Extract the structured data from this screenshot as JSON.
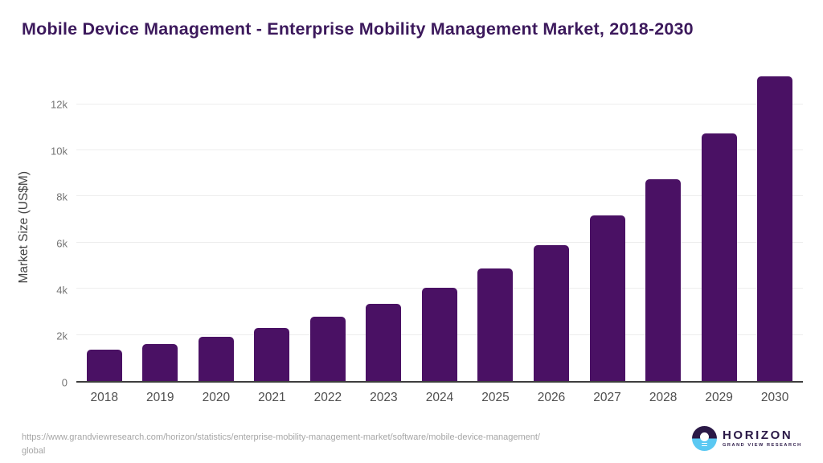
{
  "header": {
    "title": "Mobile Device Management - Enterprise Mobility Management Market, 2018-2030"
  },
  "chart_data": {
    "type": "bar",
    "title": "Mobile Device Management - Enterprise Mobility Management Market, 2018-2030",
    "xlabel": "",
    "ylabel": "Market Size (US$M)",
    "categories": [
      "2018",
      "2019",
      "2020",
      "2021",
      "2022",
      "2023",
      "2024",
      "2025",
      "2026",
      "2027",
      "2028",
      "2029",
      "2030"
    ],
    "values": [
      1350,
      1610,
      1930,
      2290,
      2780,
      3330,
      4030,
      4890,
      5900,
      7190,
      8740,
      10720,
      13190
    ],
    "ylim": [
      0,
      13380
    ],
    "ytick_values": [
      0,
      2000,
      4000,
      6000,
      8000,
      10000,
      12000
    ],
    "ytick_labels": [
      "0",
      "2k",
      "4k",
      "6k",
      "8k",
      "10k",
      "12k"
    ],
    "grid": "horizontal",
    "legend": "none",
    "bar_color": "#4a1164"
  },
  "colors": {
    "bar": "#4a1164",
    "title": "#3c195c",
    "axis_line": "#3d3d3d",
    "gridline": "#ededed",
    "ytick_text": "#757575",
    "xtick_text": "#4f4f4f",
    "logo_dark": "#2b1947",
    "logo_blue": "#5ac8f2",
    "url_text": "#a6a6a6"
  },
  "footer": {
    "url_line1": "https://www.grandviewresearch.com/horizon/statistics/enterprise-mobility-management-market/software/mobile-device-management/",
    "url_line2": "global"
  },
  "logo": {
    "brand": "HORIZON",
    "sub_brand": "GRAND VIEW RESEARCH"
  }
}
